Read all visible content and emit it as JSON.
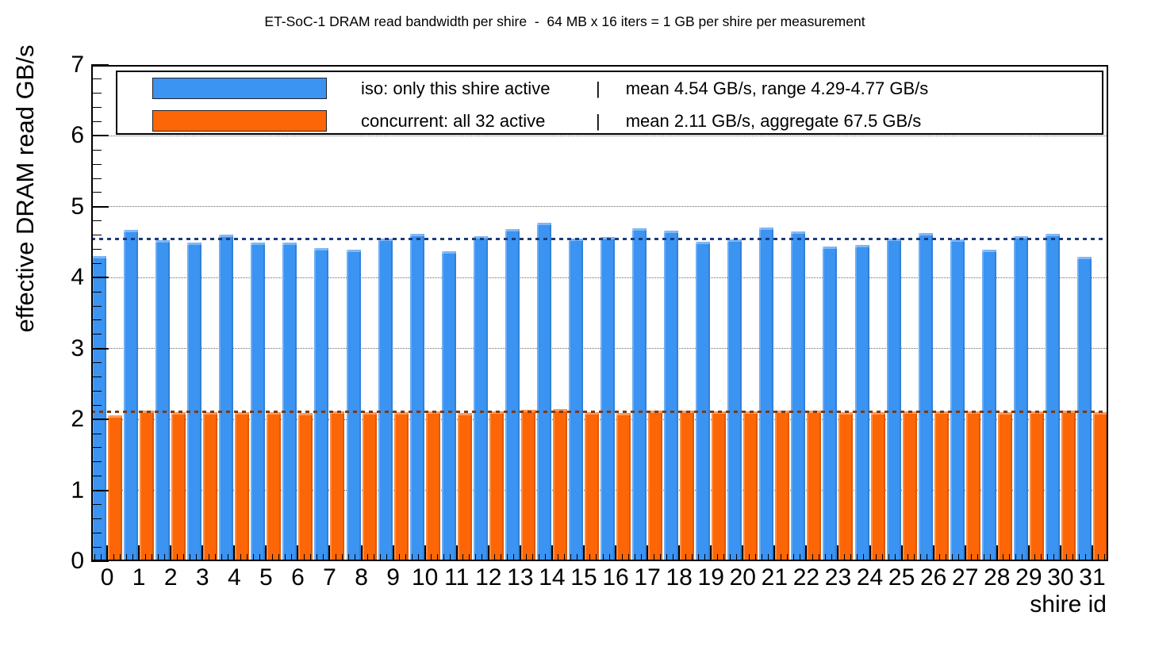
{
  "title": "ET-SoC-1 DRAM read bandwidth per shire  -  64 MB x 16 iters = 1 GB per shire per measurement",
  "legend": {
    "iso": {
      "label": "iso: only this shire active",
      "separator": "|",
      "stats": "mean 4.54 GB/s, range 4.29-4.77 GB/s"
    },
    "concurrent": {
      "label": "concurrent: all 32 active",
      "separator": "|",
      "stats": "mean 2.11 GB/s, aggregate 67.5 GB/s"
    }
  },
  "y_axis": {
    "title": "effective DRAM read GB/s",
    "min": 0,
    "max": 7,
    "major_step": 1,
    "minor_step": 0.2,
    "tick_labels": [
      "0",
      "1",
      "2",
      "3",
      "4",
      "5",
      "6",
      "7"
    ]
  },
  "x_axis": {
    "title": "shire id"
  },
  "colors": {
    "iso_bar": "#3b93f2",
    "concurrent_bar": "#fc6606",
    "iso_mean_line": "#1d3a7d",
    "concurrent_mean_line": "#7d3a12",
    "grid": "#666666",
    "frame": "#000000"
  },
  "chart_data": {
    "type": "bar",
    "title": "ET-SoC-1 DRAM read bandwidth per shire  -  64 MB x 16 iters = 1 GB per shire per measurement",
    "xlabel": "shire id",
    "ylabel": "effective DRAM read GB/s",
    "ylim": [
      0,
      7
    ],
    "grid": "horizontal dotted lines at integer values 1-6",
    "legend_position": "top, inside plot frame",
    "categories": [
      "0",
      "1",
      "2",
      "3",
      "4",
      "5",
      "6",
      "7",
      "8",
      "9",
      "10",
      "11",
      "12",
      "13",
      "14",
      "15",
      "16",
      "17",
      "18",
      "19",
      "20",
      "21",
      "22",
      "23",
      "24",
      "25",
      "26",
      "27",
      "28",
      "29",
      "30",
      "31"
    ],
    "series": [
      {
        "name": "iso: only this shire active",
        "color": "#3b93f2",
        "mean_line": 4.54,
        "mean_line_color": "#1d3a7d",
        "values": [
          4.3,
          4.67,
          4.53,
          4.49,
          4.61,
          4.49,
          4.5,
          4.42,
          4.4,
          4.55,
          4.62,
          4.37,
          4.59,
          4.68,
          4.77,
          4.55,
          4.57,
          4.7,
          4.66,
          4.51,
          4.54,
          4.71,
          4.65,
          4.44,
          4.46,
          4.55,
          4.63,
          4.54,
          4.39,
          4.59,
          4.62,
          4.29
        ]
      },
      {
        "name": "concurrent: all 32 active",
        "color": "#fc6606",
        "mean_line": 2.11,
        "mean_line_color": "#7d3a12",
        "values": [
          2.06,
          2.12,
          2.1,
          2.1,
          2.1,
          2.1,
          2.09,
          2.11,
          2.1,
          2.1,
          2.11,
          2.09,
          2.11,
          2.14,
          2.15,
          2.1,
          2.09,
          2.12,
          2.13,
          2.11,
          2.11,
          2.13,
          2.13,
          2.1,
          2.1,
          2.11,
          2.11,
          2.11,
          2.1,
          2.11,
          2.12,
          2.1
        ]
      }
    ]
  }
}
